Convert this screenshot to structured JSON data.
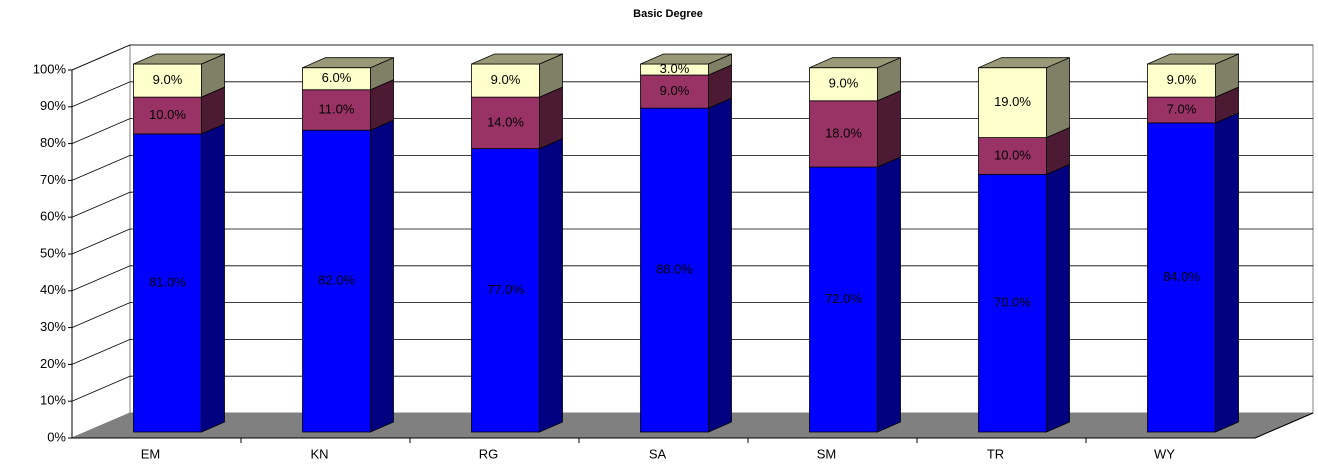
{
  "chart_data": {
    "type": "bar3d_stacked",
    "title": "Basic Degree",
    "categories": [
      "EM",
      "KN",
      "RG",
      "SA",
      "SM",
      "TR",
      "WY"
    ],
    "series": [
      {
        "color": "#0000ff",
        "side_color": "#000080",
        "values": [
          81,
          82,
          77,
          88,
          72,
          70,
          84
        ],
        "value_labels": [
          "81.0%",
          "82.0%",
          "77.0%",
          "88.0%",
          "72.0%",
          "70.0%",
          "84.0%"
        ]
      },
      {
        "color": "#993366",
        "side_color": "#4d1a33",
        "values": [
          10,
          11,
          14,
          9,
          18,
          10,
          7
        ],
        "value_labels": [
          "10.0%",
          "11.0%",
          "14.0%",
          "9.0%",
          "18.0%",
          "10.0%",
          "7.0%"
        ]
      },
      {
        "color": "#ffffcc",
        "side_color": "#808066",
        "top_color": "#999977",
        "values": [
          9,
          6,
          9,
          3,
          9,
          19,
          9
        ],
        "value_labels": [
          "9.0%",
          "6.0%",
          "9.0%",
          "3.0%",
          "9.0%",
          "19.0%",
          "9.0%"
        ]
      }
    ],
    "ylim": [
      0,
      100
    ],
    "yticks": [
      {
        "value": 0,
        "label": "0%"
      },
      {
        "value": 10,
        "label": "10%"
      },
      {
        "value": 20,
        "label": "20%"
      },
      {
        "value": 30,
        "label": "30%"
      },
      {
        "value": 40,
        "label": "40%"
      },
      {
        "value": 50,
        "label": "50%"
      },
      {
        "value": 60,
        "label": "60%"
      },
      {
        "value": 70,
        "label": "70%"
      },
      {
        "value": 80,
        "label": "80%"
      },
      {
        "value": 90,
        "label": "90%"
      },
      {
        "value": 100,
        "label": "100%"
      }
    ],
    "grid": true
  }
}
